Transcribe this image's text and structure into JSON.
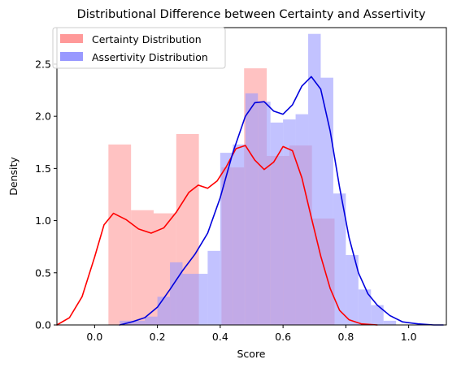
{
  "chart_data": {
    "type": "histogram",
    "title": "Distributional Difference between Certainty and Assertivity",
    "xlabel": "Score",
    "ylabel": "Density",
    "xlim": [
      -0.12,
      1.12
    ],
    "ylim": [
      0,
      2.85
    ],
    "x_ticks": [
      0.0,
      0.2,
      0.4,
      0.6,
      0.8,
      1.0
    ],
    "x_tick_labels": [
      "0.0",
      "0.2",
      "0.4",
      "0.6",
      "0.8",
      "1.0"
    ],
    "y_ticks": [
      0.0,
      0.5,
      1.0,
      1.5,
      2.0,
      2.5
    ],
    "y_tick_labels": [
      "0.0",
      "0.5",
      "1.0",
      "1.5",
      "2.0",
      "2.5"
    ],
    "grid": false,
    "legend_position": "top-left",
    "series": [
      {
        "name": "Certainty Distribution",
        "bar_color": "#ff9999",
        "kde_color": "#ff0000",
        "bin_width": 0.072,
        "bins": [
          {
            "x": 0.044,
            "density": 1.73
          },
          {
            "x": 0.116,
            "density": 1.1
          },
          {
            "x": 0.188,
            "density": 1.07
          },
          {
            "x": 0.26,
            "density": 1.83
          },
          {
            "x": 0.332,
            "density": 0.0
          },
          {
            "x": 0.404,
            "density": 1.51
          },
          {
            "x": 0.476,
            "density": 2.46
          },
          {
            "x": 0.548,
            "density": 1.62
          },
          {
            "x": 0.62,
            "density": 1.72
          },
          {
            "x": 0.692,
            "density": 1.02
          }
        ],
        "kde": [
          [
            -0.12,
            0.0
          ],
          [
            -0.08,
            0.07
          ],
          [
            -0.04,
            0.27
          ],
          [
            0.0,
            0.65
          ],
          [
            0.03,
            0.96
          ],
          [
            0.06,
            1.07
          ],
          [
            0.1,
            1.01
          ],
          [
            0.14,
            0.92
          ],
          [
            0.18,
            0.88
          ],
          [
            0.22,
            0.93
          ],
          [
            0.26,
            1.08
          ],
          [
            0.3,
            1.27
          ],
          [
            0.33,
            1.34
          ],
          [
            0.36,
            1.31
          ],
          [
            0.39,
            1.38
          ],
          [
            0.42,
            1.52
          ],
          [
            0.45,
            1.69
          ],
          [
            0.48,
            1.72
          ],
          [
            0.51,
            1.58
          ],
          [
            0.54,
            1.49
          ],
          [
            0.57,
            1.56
          ],
          [
            0.6,
            1.71
          ],
          [
            0.63,
            1.67
          ],
          [
            0.66,
            1.41
          ],
          [
            0.69,
            1.03
          ],
          [
            0.72,
            0.66
          ],
          [
            0.75,
            0.35
          ],
          [
            0.78,
            0.14
          ],
          [
            0.81,
            0.05
          ],
          [
            0.85,
            0.01
          ],
          [
            0.9,
            0.0
          ]
        ]
      },
      {
        "name": "Assertivity Distribution",
        "bar_color": "#9999ff",
        "kde_color": "#0000dd",
        "bin_width": 0.04,
        "bins": [
          {
            "x": 0.08,
            "density": 0.04
          },
          {
            "x": 0.12,
            "density": 0.04
          },
          {
            "x": 0.16,
            "density": 0.08
          },
          {
            "x": 0.2,
            "density": 0.27
          },
          {
            "x": 0.24,
            "density": 0.6
          },
          {
            "x": 0.28,
            "density": 0.49
          },
          {
            "x": 0.32,
            "density": 0.49
          },
          {
            "x": 0.36,
            "density": 0.71
          },
          {
            "x": 0.4,
            "density": 1.65
          },
          {
            "x": 0.44,
            "density": 1.73
          },
          {
            "x": 0.48,
            "density": 2.22
          },
          {
            "x": 0.52,
            "density": 2.14
          },
          {
            "x": 0.56,
            "density": 1.94
          },
          {
            "x": 0.6,
            "density": 1.97
          },
          {
            "x": 0.64,
            "density": 2.02
          },
          {
            "x": 0.68,
            "density": 2.79
          },
          {
            "x": 0.72,
            "density": 2.37
          },
          {
            "x": 0.76,
            "density": 1.26
          },
          {
            "x": 0.8,
            "density": 0.67
          },
          {
            "x": 0.84,
            "density": 0.34
          },
          {
            "x": 0.88,
            "density": 0.19
          },
          {
            "x": 0.92,
            "density": 0.04
          }
        ],
        "kde": [
          [
            0.08,
            0.0
          ],
          [
            0.12,
            0.03
          ],
          [
            0.16,
            0.07
          ],
          [
            0.2,
            0.17
          ],
          [
            0.24,
            0.34
          ],
          [
            0.28,
            0.52
          ],
          [
            0.32,
            0.68
          ],
          [
            0.36,
            0.88
          ],
          [
            0.4,
            1.22
          ],
          [
            0.44,
            1.65
          ],
          [
            0.48,
            2.0
          ],
          [
            0.51,
            2.13
          ],
          [
            0.54,
            2.14
          ],
          [
            0.57,
            2.05
          ],
          [
            0.6,
            2.02
          ],
          [
            0.63,
            2.11
          ],
          [
            0.66,
            2.29
          ],
          [
            0.69,
            2.38
          ],
          [
            0.72,
            2.26
          ],
          [
            0.75,
            1.86
          ],
          [
            0.78,
            1.32
          ],
          [
            0.81,
            0.84
          ],
          [
            0.84,
            0.5
          ],
          [
            0.87,
            0.3
          ],
          [
            0.9,
            0.19
          ],
          [
            0.94,
            0.09
          ],
          [
            0.98,
            0.03
          ],
          [
            1.03,
            0.01
          ],
          [
            1.08,
            0.0
          ],
          [
            1.11,
            0.0
          ]
        ]
      }
    ]
  }
}
